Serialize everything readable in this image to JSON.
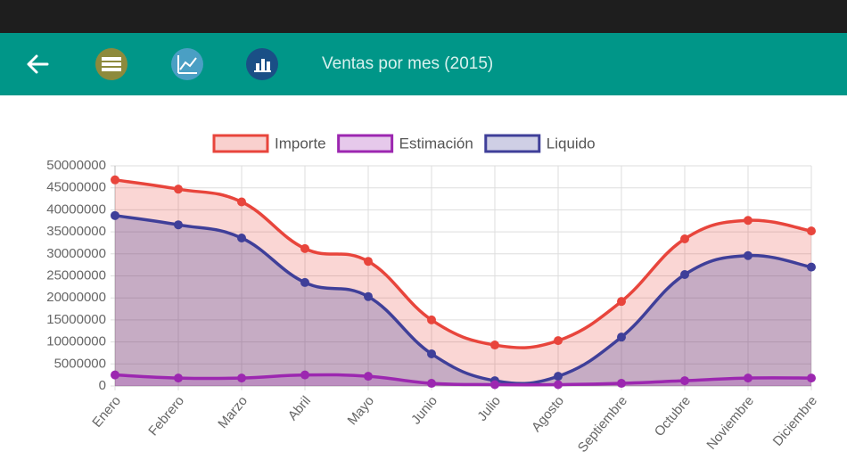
{
  "app_bar": {
    "title": "Ventas por mes (2015)"
  },
  "chart_data": {
    "type": "line",
    "categories": [
      "Enero",
      "Febrero",
      "Marzo",
      "Abril",
      "Mayo",
      "Junio",
      "Julio",
      "Agosto",
      "Septiembre",
      "Octubre",
      "Noviembre",
      "Diciembre"
    ],
    "series": [
      {
        "name": "Importe",
        "color": "#e8453c",
        "values": [
          46800000,
          44700000,
          41800000,
          31200000,
          28300000,
          15000000,
          9300000,
          10300000,
          19200000,
          33400000,
          37600000,
          35200000
        ]
      },
      {
        "name": "Estimación",
        "color": "#9c27b0",
        "values": [
          2500000,
          1800000,
          1800000,
          2500000,
          2200000,
          600000,
          300000,
          300000,
          600000,
          1200000,
          1800000,
          1800000
        ]
      },
      {
        "name": "Liquido",
        "color": "#3f3f99",
        "values": [
          38700000,
          36600000,
          33600000,
          23500000,
          20300000,
          7300000,
          1200000,
          2200000,
          11100000,
          25300000,
          29600000,
          27000000
        ]
      }
    ],
    "ylim": [
      0,
      50000000
    ],
    "yticks": [
      0,
      5000000,
      10000000,
      15000000,
      20000000,
      25000000,
      30000000,
      35000000,
      40000000,
      45000000,
      50000000
    ],
    "grid": true,
    "legend": "top"
  }
}
